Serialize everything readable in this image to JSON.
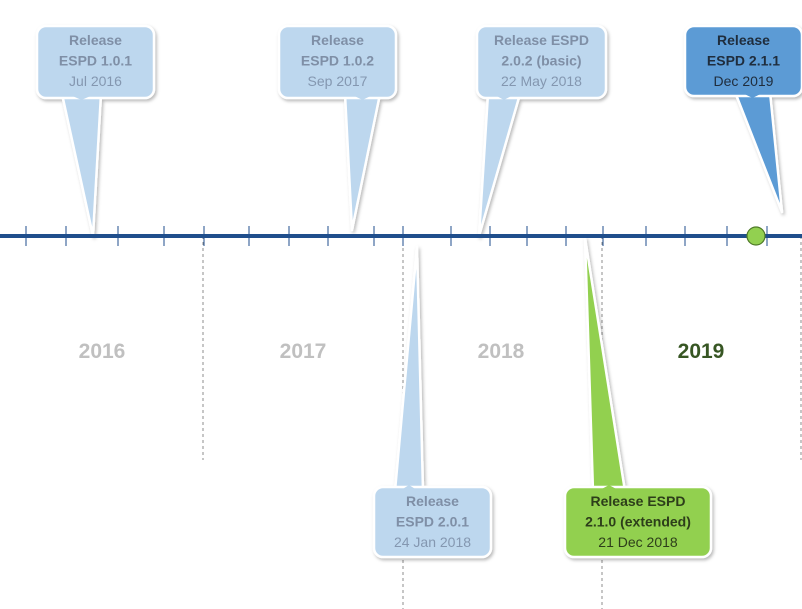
{
  "timeline": {
    "years": [
      {
        "label": "2016",
        "current": false
      },
      {
        "label": "2017",
        "current": false
      },
      {
        "label": "2018",
        "current": false
      },
      {
        "label": "2019",
        "current": true
      }
    ],
    "releases": [
      {
        "id": "release-1-0-1",
        "lines": [
          "Release",
          "ESPD 1.0.1"
        ],
        "date": "Jul 2016",
        "side": "above",
        "style": "past"
      },
      {
        "id": "release-1-0-2",
        "lines": [
          "Release",
          "ESPD 1.0.2"
        ],
        "date": "Sep 2017",
        "side": "above",
        "style": "past"
      },
      {
        "id": "release-2-0-2",
        "lines": [
          "Release ESPD",
          "2.0.2 (basic)"
        ],
        "date": "22 May 2018",
        "side": "above",
        "style": "past"
      },
      {
        "id": "release-2-1-1",
        "lines": [
          "Release",
          "ESPD 2.1.1"
        ],
        "date": "Dec 2019",
        "side": "above",
        "style": "upcoming"
      },
      {
        "id": "release-2-0-1",
        "lines": [
          "Release",
          "ESPD 2.0.1"
        ],
        "date": "24 Jan 2018",
        "side": "below",
        "style": "past"
      },
      {
        "id": "release-2-1-0",
        "lines": [
          "Release ESPD",
          "2.1.0 (extended)"
        ],
        "date": "21 Dec 2018",
        "side": "below",
        "style": "current"
      }
    ]
  },
  "colors": {
    "axis": "#1f4e8c",
    "past_fill": "#bdd7ee",
    "past_text": "#8497b0",
    "past_text_bold": "#7f8fa6",
    "upcoming_fill": "#5b9bd5",
    "upcoming_text": "#1f2d3d",
    "current_fill": "#92d050",
    "current_text": "#2d3e1a",
    "year_past": "#c0c0c0",
    "year_current": "#375623",
    "today_marker": "#92d050"
  }
}
